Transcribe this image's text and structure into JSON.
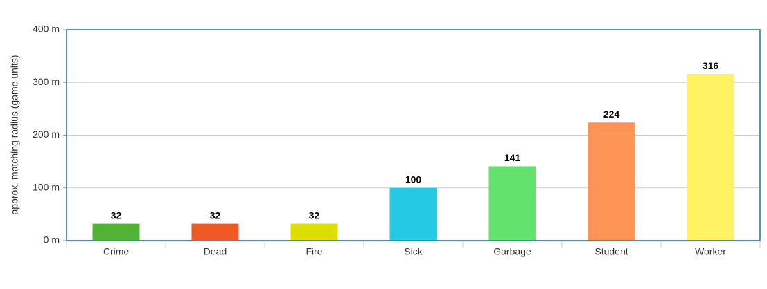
{
  "chart_data": {
    "type": "bar",
    "y_label": "approx. matching radius (game units)",
    "categories": [
      "Crime",
      "Dead",
      "Fire",
      "Sick",
      "Garbage",
      "Student",
      "Worker"
    ],
    "values": [
      32,
      32,
      32,
      100,
      141,
      224,
      316
    ],
    "colors": [
      "#52b234",
      "#ef5a24",
      "#dddd00",
      "#26c9e3",
      "#63e36e",
      "#ff9457",
      "#fff263"
    ],
    "ylim": [
      0,
      400
    ],
    "yticks": [
      {
        "value": 0,
        "label": "0 m"
      },
      {
        "value": 100,
        "label": "100 m"
      },
      {
        "value": 200,
        "label": "200 m"
      },
      {
        "value": 300,
        "label": "300 m"
      },
      {
        "value": 400,
        "label": "400 m"
      }
    ],
    "grid": true
  }
}
